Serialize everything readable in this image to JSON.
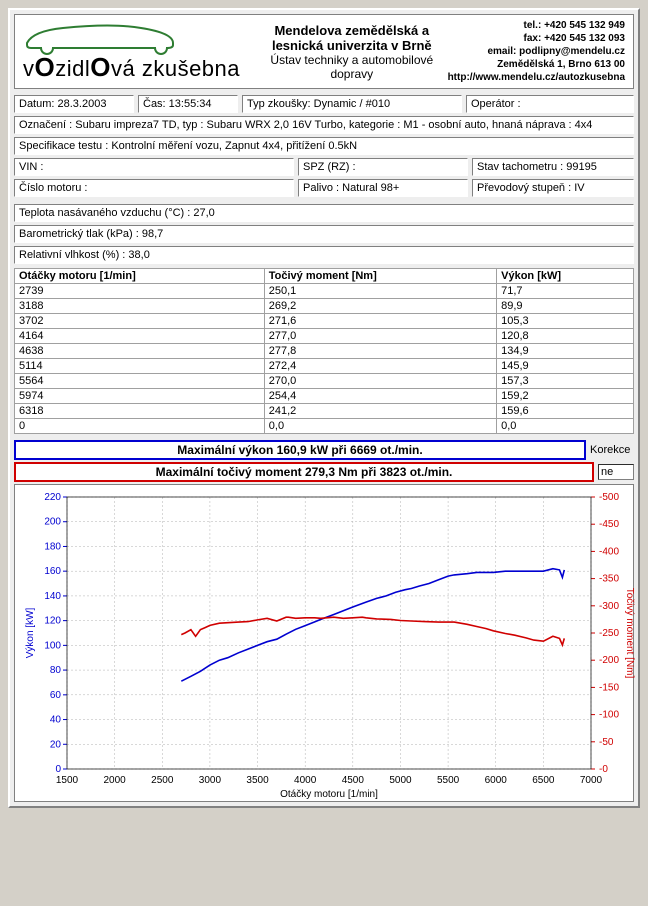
{
  "header": {
    "logo_word1": "v",
    "logo_word2": "zidl",
    "logo_word3": "vá zkušebna",
    "big_o": "O",
    "title1": "Mendelova zemědělská a lesnická univerzita v Brně",
    "title2": "Ústav techniky a automobilové dopravy",
    "tel": "tel.: +420 545 132 949",
    "fax": "fax: +420 545 132 093",
    "email": "email: podlipny@mendelu.cz",
    "addr": "Zemědělská 1, Brno 613 00",
    "url": "http://www.mendelu.cz/autozkusebna"
  },
  "fields": {
    "datum": "Datum: 28.3.2003",
    "cas": "Čas: 13:55:34",
    "typ_zk": "Typ zkoušky: Dynamic / #010",
    "operator": "Operátor :",
    "oznaceni": "Označení : Subaru impreza7 TD, typ : Subaru WRX 2,0 16V Turbo, kategorie : M1 - osobní auto, hnaná náprava : 4x4",
    "spec": "Specifikace testu : Kontrolní měření vozu, Zapnut 4x4,  přitížení 0.5kN",
    "vin": "VIN :",
    "spz": "SPZ (RZ) :",
    "tach": "Stav tachometru : 99195",
    "motor": "Číslo motoru :",
    "palivo": "Palivo : Natural 98+",
    "prevod": "Převodový stupeň : IV",
    "teplota": "Teplota nasávaného vzduchu (°C) : 27,0",
    "baro": "Barometrický tlak (kPa) : 98,7",
    "vlhkost": "Relativní vlhkost (%) : 38,0"
  },
  "table": {
    "headers": [
      "Otáčky motoru [1/min]",
      "Točivý moment [Nm]",
      "Výkon [kW]"
    ],
    "rows": [
      [
        "2739",
        "250,1",
        "71,7"
      ],
      [
        "3188",
        "269,2",
        "89,9"
      ],
      [
        "3702",
        "271,6",
        "105,3"
      ],
      [
        "4164",
        "277,0",
        "120,8"
      ],
      [
        "4638",
        "277,8",
        "134,9"
      ],
      [
        "5114",
        "272,4",
        "145,9"
      ],
      [
        "5564",
        "270,0",
        "157,3"
      ],
      [
        "5974",
        "254,4",
        "159,2"
      ],
      [
        "6318",
        "241,2",
        "159,6"
      ],
      [
        "0",
        "0,0",
        "0,0"
      ]
    ]
  },
  "max": {
    "power": "Maximální výkon 160,9 kW při 6669 ot./min.",
    "torque": "Maximální točivý moment 279,3 Nm při 3823 ot./min.",
    "korekce_label": "Korekce",
    "korekce_value": "ne"
  },
  "chart": {
    "x_label": "Otáčky motoru [1/min]",
    "y_left_label": "Výkon [kW]",
    "y_right_label": "Točivý moment [Nm]",
    "x_min": 1500,
    "x_max": 7000,
    "x_step": 500,
    "yl_min": 0,
    "yl_max": 220,
    "yl_step": 20,
    "yr_min": 0,
    "yr_max": 500,
    "yr_step": 50,
    "colors": {
      "power": "#0000d0",
      "torque": "#d00000",
      "grid": "#b0b0b0",
      "bg": "#ffffff"
    },
    "power_series": [
      [
        2700,
        71
      ],
      [
        2800,
        75
      ],
      [
        2900,
        79
      ],
      [
        3000,
        84
      ],
      [
        3100,
        88
      ],
      [
        3188,
        90
      ],
      [
        3300,
        94
      ],
      [
        3400,
        97
      ],
      [
        3500,
        100
      ],
      [
        3600,
        103
      ],
      [
        3702,
        105
      ],
      [
        3800,
        109
      ],
      [
        3900,
        113
      ],
      [
        4000,
        116
      ],
      [
        4100,
        119
      ],
      [
        4164,
        121
      ],
      [
        4300,
        125
      ],
      [
        4400,
        128
      ],
      [
        4500,
        131
      ],
      [
        4638,
        135
      ],
      [
        4750,
        138
      ],
      [
        4850,
        140
      ],
      [
        4950,
        143
      ],
      [
        5050,
        145
      ],
      [
        5114,
        146
      ],
      [
        5200,
        148
      ],
      [
        5300,
        150
      ],
      [
        5400,
        153
      ],
      [
        5500,
        156
      ],
      [
        5564,
        157
      ],
      [
        5700,
        158
      ],
      [
        5800,
        159
      ],
      [
        5900,
        159
      ],
      [
        5974,
        159
      ],
      [
        6100,
        160
      ],
      [
        6200,
        160
      ],
      [
        6318,
        160
      ],
      [
        6400,
        160
      ],
      [
        6500,
        160
      ],
      [
        6600,
        162
      ],
      [
        6669,
        161
      ],
      [
        6700,
        155
      ],
      [
        6720,
        161
      ]
    ],
    "torque_series": [
      [
        2700,
        247
      ],
      [
        2739,
        250
      ],
      [
        2800,
        256
      ],
      [
        2850,
        244
      ],
      [
        2900,
        256
      ],
      [
        2950,
        260
      ],
      [
        3000,
        264
      ],
      [
        3100,
        268
      ],
      [
        3188,
        269
      ],
      [
        3300,
        270
      ],
      [
        3400,
        271
      ],
      [
        3500,
        274
      ],
      [
        3600,
        277
      ],
      [
        3702,
        272
      ],
      [
        3800,
        279
      ],
      [
        3823,
        279
      ],
      [
        3900,
        277
      ],
      [
        4000,
        278
      ],
      [
        4100,
        278
      ],
      [
        4164,
        277
      ],
      [
        4300,
        279
      ],
      [
        4400,
        277
      ],
      [
        4500,
        278
      ],
      [
        4600,
        279
      ],
      [
        4638,
        278
      ],
      [
        4750,
        276
      ],
      [
        4900,
        275
      ],
      [
        5000,
        273
      ],
      [
        5114,
        272
      ],
      [
        5250,
        271
      ],
      [
        5400,
        270
      ],
      [
        5500,
        270
      ],
      [
        5564,
        270
      ],
      [
        5700,
        266
      ],
      [
        5800,
        262
      ],
      [
        5900,
        258
      ],
      [
        5974,
        254
      ],
      [
        6100,
        249
      ],
      [
        6200,
        246
      ],
      [
        6318,
        241
      ],
      [
        6400,
        237
      ],
      [
        6500,
        235
      ],
      [
        6600,
        244
      ],
      [
        6669,
        240
      ],
      [
        6700,
        228
      ],
      [
        6720,
        240
      ]
    ]
  }
}
